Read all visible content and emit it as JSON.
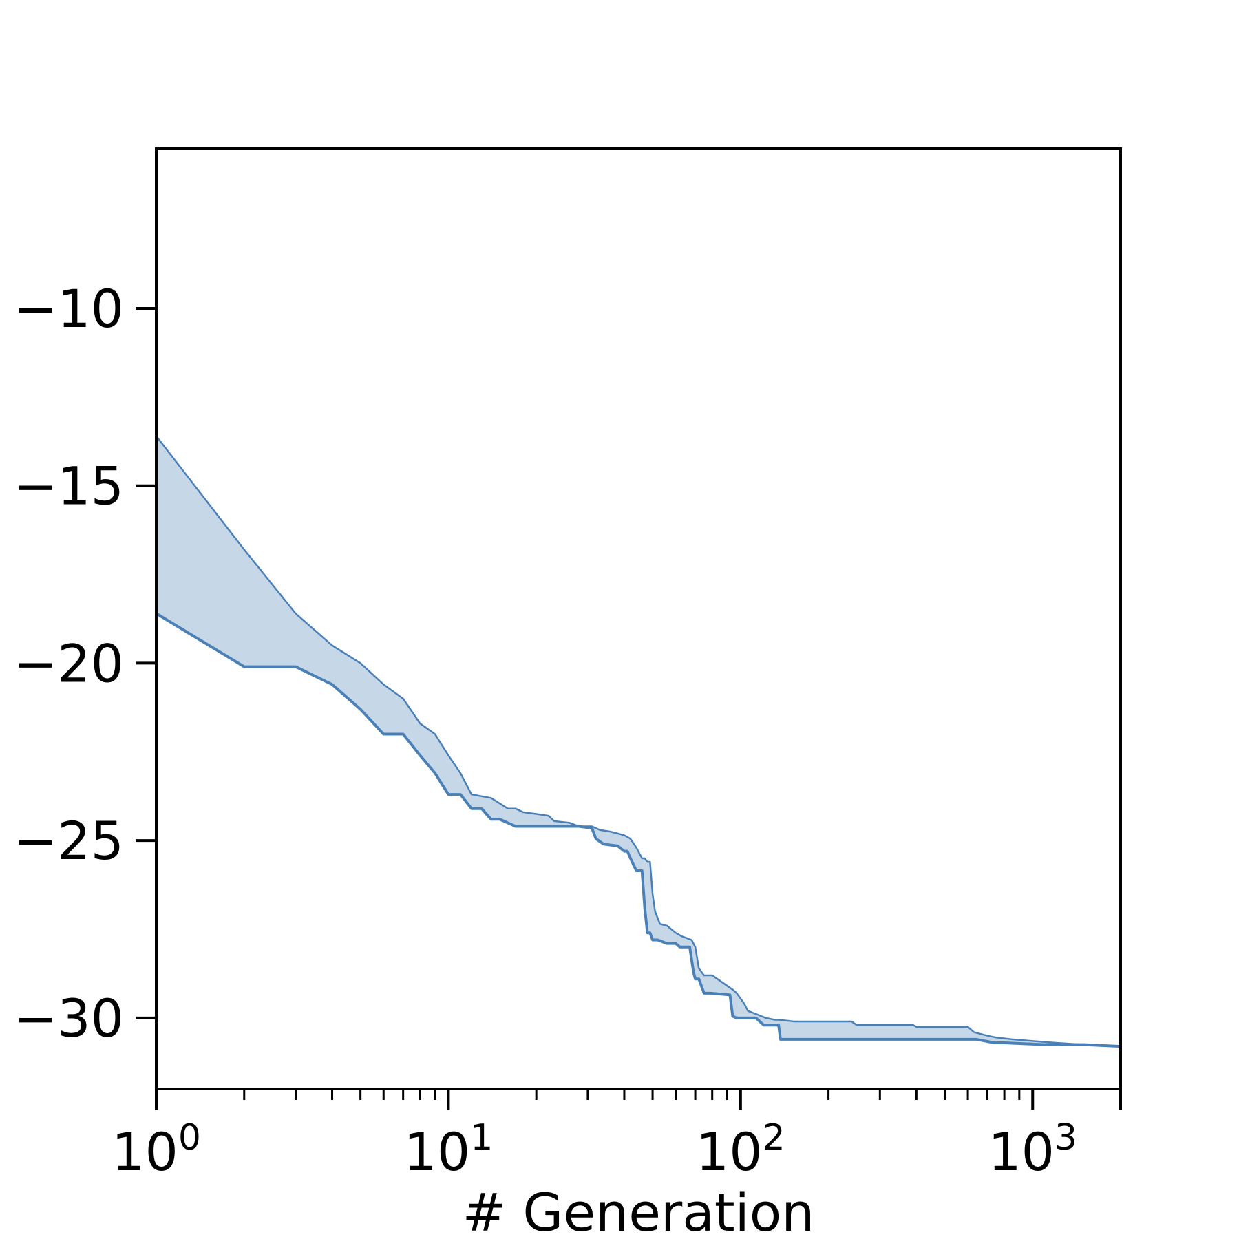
{
  "chart_data": {
    "type": "area",
    "title": "",
    "xlabel": "# Generation",
    "ylabel": "",
    "x_scale": "log",
    "xlim": [
      1,
      2000
    ],
    "ylim": [
      -32,
      -5.5
    ],
    "grid": false,
    "x_ticks": [
      {
        "value": 1,
        "base": "10",
        "exp": "0"
      },
      {
        "value": 10,
        "base": "10",
        "exp": "1"
      },
      {
        "value": 100,
        "base": "10",
        "exp": "2"
      },
      {
        "value": 1000,
        "base": "10",
        "exp": "3"
      }
    ],
    "y_ticks": [
      {
        "value": -10,
        "label": "−10"
      },
      {
        "value": -15,
        "label": "−15"
      },
      {
        "value": -20,
        "label": "−20"
      },
      {
        "value": -25,
        "label": "−25"
      },
      {
        "value": -30,
        "label": "−30"
      }
    ],
    "series": [
      {
        "color": "#4a80b8",
        "fill_color": "#c6d7e8",
        "upper": {
          "x": [
            1,
            2,
            3,
            4,
            5,
            6,
            7,
            8,
            9,
            10,
            11,
            12,
            14,
            16,
            17,
            18,
            20,
            22,
            23,
            26,
            28,
            31,
            33,
            36,
            38,
            40,
            42,
            44,
            46,
            47,
            48,
            49,
            50,
            51,
            53,
            56,
            60,
            63,
            68,
            70,
            72,
            75,
            80,
            94,
            97,
            103,
            106,
            114,
            122,
            131,
            135,
            153,
            240,
            250,
            390,
            400,
            600,
            630,
            700,
            750,
            850,
            1000,
            1200,
            1500,
            2000
          ],
          "y": [
            -13.6,
            -16.8,
            -18.6,
            -19.5,
            -20.0,
            -20.6,
            -21.0,
            -21.7,
            -22.0,
            -22.6,
            -23.1,
            -23.7,
            -23.8,
            -24.1,
            -24.1,
            -24.2,
            -24.25,
            -24.3,
            -24.45,
            -24.5,
            -24.6,
            -24.6,
            -24.7,
            -24.75,
            -24.8,
            -24.85,
            -24.95,
            -25.2,
            -25.5,
            -25.5,
            -25.6,
            -25.6,
            -26.5,
            -27.0,
            -27.35,
            -27.4,
            -27.6,
            -27.7,
            -27.8,
            -28.0,
            -28.6,
            -28.8,
            -28.8,
            -29.2,
            -29.3,
            -29.6,
            -29.8,
            -29.9,
            -30.0,
            -30.05,
            -30.05,
            -30.1,
            -30.1,
            -30.2,
            -30.2,
            -30.25,
            -30.25,
            -30.4,
            -30.5,
            -30.55,
            -30.6,
            -30.65,
            -30.7,
            -30.75,
            -30.8
          ]
        },
        "lower": {
          "x": [
            1,
            2,
            3,
            4,
            5,
            6,
            7,
            8,
            9,
            10,
            11,
            12,
            13,
            14,
            15,
            17,
            28,
            31,
            32,
            34,
            38,
            40,
            41,
            42,
            44,
            46,
            47,
            48,
            49,
            50,
            51,
            52,
            56,
            60,
            62,
            67,
            69,
            70,
            72,
            75,
            79,
            92,
            94,
            97,
            113,
            120,
            135,
            137,
            640,
            740,
            800,
            1100,
            1500,
            2000
          ],
          "y": [
            -18.6,
            -20.1,
            -20.1,
            -20.6,
            -21.3,
            -22.0,
            -22.0,
            -22.6,
            -23.1,
            -23.7,
            -23.7,
            -24.1,
            -24.1,
            -24.4,
            -24.4,
            -24.6,
            -24.6,
            -24.65,
            -24.95,
            -25.1,
            -25.15,
            -25.3,
            -25.3,
            -25.5,
            -25.85,
            -25.85,
            -26.9,
            -27.6,
            -27.6,
            -27.8,
            -27.8,
            -27.8,
            -27.9,
            -27.9,
            -28.0,
            -28.0,
            -28.7,
            -28.9,
            -28.9,
            -29.3,
            -29.3,
            -29.35,
            -29.95,
            -30.0,
            -30.0,
            -30.2,
            -30.2,
            -30.6,
            -30.6,
            -30.7,
            -30.7,
            -30.75,
            -30.75,
            -30.8
          ]
        }
      }
    ]
  }
}
